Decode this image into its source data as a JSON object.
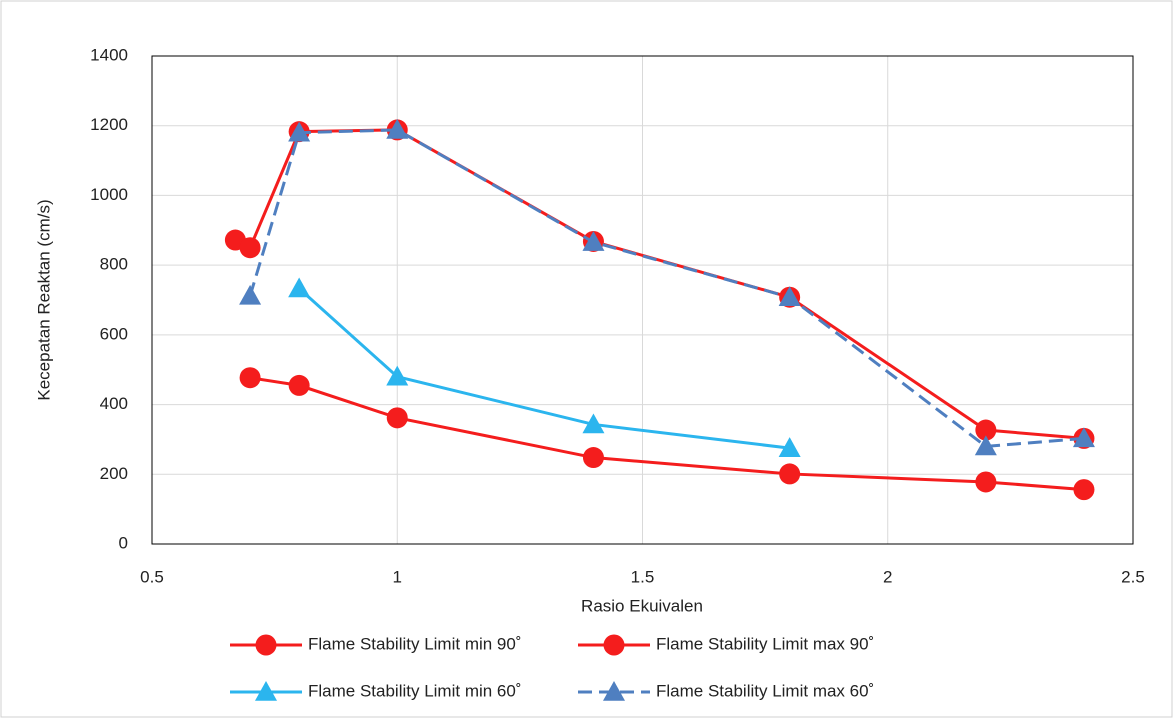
{
  "chart_data": {
    "type": "line",
    "x_label": "Rasio Ekuivalen",
    "y_label": "Kecepatan Reaktan (cm/s)",
    "xlim": [
      0.5,
      2.5
    ],
    "xticks": [
      0.5,
      1,
      1.5,
      2,
      2.5
    ],
    "ylim": [
      0,
      1400
    ],
    "yticks": [
      0,
      200,
      400,
      600,
      800,
      1000,
      1200,
      1400
    ],
    "grid": true,
    "legend": "bottom",
    "series": [
      {
        "name": "Flame Stability Limit min 90˚",
        "color": "#f41d1d",
        "marker": "circle",
        "dash": false,
        "x": [
          0.7,
          0.8,
          1.0,
          1.4,
          1.8,
          2.2,
          2.4
        ],
        "values": [
          477,
          455,
          362,
          248,
          201,
          178,
          156
        ]
      },
      {
        "name": "Flame Stability Limit max 90˚",
        "color": "#f41d1d",
        "marker": "circle",
        "dash": false,
        "x": [
          0.67,
          0.7,
          0.8,
          1.0,
          1.4,
          1.8,
          2.2,
          2.4
        ],
        "values": [
          872,
          850,
          1183,
          1188,
          868,
          708,
          327,
          303
        ]
      },
      {
        "name": "Flame Stability Limit min 60˚",
        "color": "#2bb5ee",
        "marker": "triangle",
        "dash": false,
        "x": [
          0.8,
          1.0,
          1.4,
          1.8
        ],
        "values": [
          733,
          480,
          343,
          275
        ]
      },
      {
        "name": "Flame Stability Limit max 60˚",
        "color": "#4f7fc0",
        "marker": "triangle",
        "dash": true,
        "x": [
          0.7,
          0.8,
          1.0,
          1.4,
          1.8,
          2.2,
          2.4
        ],
        "values": [
          712,
          1180,
          1188,
          866,
          708,
          280,
          303
        ]
      }
    ]
  }
}
